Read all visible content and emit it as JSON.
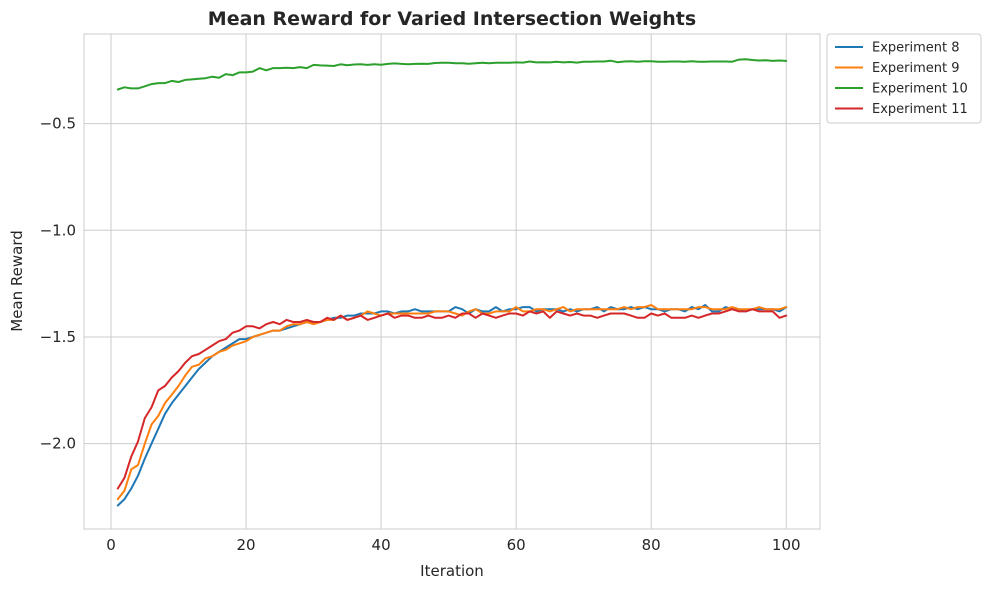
{
  "chart_data": {
    "type": "line",
    "title": "Mean Reward for Varied Intersection Weights",
    "xlabel": "Iteration",
    "ylabel": "Mean Reward",
    "xlim": [
      -4,
      105
    ],
    "ylim": [
      -2.4,
      -0.08
    ],
    "xticks": [
      0,
      20,
      40,
      60,
      80,
      100
    ],
    "yticks": [
      -2.0,
      -1.5,
      -1.0,
      -0.5
    ],
    "xtick_labels": [
      "0",
      "20",
      "40",
      "60",
      "80",
      "100"
    ],
    "ytick_labels": [
      "−2.0",
      "−1.5",
      "−1.0",
      "−0.5"
    ],
    "grid": true,
    "legend_position": "outside-top-right",
    "x": [
      1,
      2,
      3,
      4,
      5,
      6,
      7,
      8,
      9,
      10,
      11,
      12,
      13,
      14,
      15,
      16,
      17,
      18,
      19,
      20,
      21,
      22,
      23,
      24,
      25,
      26,
      27,
      28,
      29,
      30,
      31,
      32,
      33,
      34,
      35,
      36,
      37,
      38,
      39,
      40,
      41,
      42,
      43,
      44,
      45,
      46,
      47,
      48,
      49,
      50,
      51,
      52,
      53,
      54,
      55,
      56,
      57,
      58,
      59,
      60,
      61,
      62,
      63,
      64,
      65,
      66,
      67,
      68,
      69,
      70,
      71,
      72,
      73,
      74,
      75,
      76,
      77,
      78,
      79,
      80,
      81,
      82,
      83,
      84,
      85,
      86,
      87,
      88,
      89,
      90,
      91,
      92,
      93,
      94,
      95,
      96,
      97,
      98,
      99,
      100
    ],
    "series": [
      {
        "name": "Experiment 8",
        "color": "#1f77b4",
        "values": [
          -2.29,
          -2.26,
          -2.21,
          -2.15,
          -2.07,
          -2.0,
          -1.93,
          -1.86,
          -1.81,
          -1.77,
          -1.73,
          -1.69,
          -1.65,
          -1.62,
          -1.59,
          -1.57,
          -1.55,
          -1.53,
          -1.51,
          -1.51,
          -1.5,
          -1.49,
          -1.48,
          -1.47,
          -1.47,
          -1.46,
          -1.45,
          -1.44,
          -1.43,
          -1.43,
          -1.43,
          -1.42,
          -1.41,
          -1.41,
          -1.4,
          -1.4,
          -1.39,
          -1.39,
          -1.39,
          -1.38,
          -1.38,
          -1.39,
          -1.38,
          -1.38,
          -1.37,
          -1.38,
          -1.38,
          -1.38,
          -1.38,
          -1.38,
          -1.36,
          -1.37,
          -1.39,
          -1.37,
          -1.38,
          -1.38,
          -1.36,
          -1.38,
          -1.37,
          -1.37,
          -1.36,
          -1.36,
          -1.38,
          -1.37,
          -1.37,
          -1.37,
          -1.38,
          -1.37,
          -1.38,
          -1.37,
          -1.37,
          -1.36,
          -1.38,
          -1.36,
          -1.37,
          -1.37,
          -1.36,
          -1.37,
          -1.36,
          -1.37,
          -1.37,
          -1.38,
          -1.37,
          -1.37,
          -1.38,
          -1.36,
          -1.37,
          -1.35,
          -1.38,
          -1.38,
          -1.36,
          -1.37,
          -1.37,
          -1.38,
          -1.37,
          -1.37,
          -1.37,
          -1.37,
          -1.38,
          -1.36
        ]
      },
      {
        "name": "Experiment 9",
        "color": "#ff7f0e",
        "values": [
          -2.26,
          -2.22,
          -2.12,
          -2.1,
          -2.0,
          -1.91,
          -1.87,
          -1.81,
          -1.77,
          -1.73,
          -1.68,
          -1.64,
          -1.63,
          -1.6,
          -1.59,
          -1.57,
          -1.56,
          -1.54,
          -1.53,
          -1.52,
          -1.5,
          -1.49,
          -1.48,
          -1.47,
          -1.47,
          -1.45,
          -1.44,
          -1.44,
          -1.43,
          -1.44,
          -1.43,
          -1.42,
          -1.42,
          -1.4,
          -1.42,
          -1.41,
          -1.4,
          -1.38,
          -1.39,
          -1.4,
          -1.39,
          -1.39,
          -1.39,
          -1.39,
          -1.39,
          -1.39,
          -1.39,
          -1.38,
          -1.38,
          -1.38,
          -1.39,
          -1.4,
          -1.38,
          -1.37,
          -1.39,
          -1.39,
          -1.38,
          -1.38,
          -1.38,
          -1.36,
          -1.38,
          -1.38,
          -1.37,
          -1.37,
          -1.38,
          -1.37,
          -1.36,
          -1.38,
          -1.37,
          -1.37,
          -1.37,
          -1.37,
          -1.37,
          -1.37,
          -1.37,
          -1.36,
          -1.37,
          -1.36,
          -1.36,
          -1.35,
          -1.37,
          -1.37,
          -1.37,
          -1.37,
          -1.37,
          -1.37,
          -1.36,
          -1.36,
          -1.37,
          -1.37,
          -1.37,
          -1.36,
          -1.37,
          -1.37,
          -1.37,
          -1.36,
          -1.37,
          -1.37,
          -1.37,
          -1.36
        ]
      },
      {
        "name": "Experiment 10",
        "color": "#2ca02c",
        "values": [
          -0.34,
          -0.33,
          -0.335,
          -0.335,
          -0.325,
          -0.315,
          -0.31,
          -0.31,
          -0.3,
          -0.305,
          -0.295,
          -0.293,
          -0.29,
          -0.287,
          -0.28,
          -0.285,
          -0.268,
          -0.273,
          -0.26,
          -0.26,
          -0.256,
          -0.24,
          -0.25,
          -0.24,
          -0.24,
          -0.238,
          -0.24,
          -0.235,
          -0.24,
          -0.225,
          -0.227,
          -0.228,
          -0.23,
          -0.222,
          -0.226,
          -0.223,
          -0.222,
          -0.225,
          -0.222,
          -0.224,
          -0.22,
          -0.218,
          -0.22,
          -0.222,
          -0.22,
          -0.219,
          -0.22,
          -0.216,
          -0.215,
          -0.215,
          -0.217,
          -0.217,
          -0.219,
          -0.217,
          -0.215,
          -0.217,
          -0.215,
          -0.215,
          -0.215,
          -0.213,
          -0.214,
          -0.209,
          -0.213,
          -0.212,
          -0.213,
          -0.21,
          -0.213,
          -0.211,
          -0.214,
          -0.21,
          -0.21,
          -0.209,
          -0.209,
          -0.205,
          -0.212,
          -0.209,
          -0.208,
          -0.21,
          -0.208,
          -0.208,
          -0.21,
          -0.21,
          -0.209,
          -0.209,
          -0.21,
          -0.208,
          -0.21,
          -0.21,
          -0.209,
          -0.209,
          -0.209,
          -0.21,
          -0.2,
          -0.198,
          -0.202,
          -0.204,
          -0.203,
          -0.206,
          -0.204,
          -0.206
        ]
      },
      {
        "name": "Experiment 11",
        "color": "#d62728",
        "values": [
          -2.21,
          -2.16,
          -2.06,
          -1.99,
          -1.88,
          -1.83,
          -1.75,
          -1.73,
          -1.69,
          -1.66,
          -1.62,
          -1.59,
          -1.58,
          -1.56,
          -1.54,
          -1.52,
          -1.51,
          -1.48,
          -1.47,
          -1.45,
          -1.45,
          -1.46,
          -1.44,
          -1.43,
          -1.44,
          -1.42,
          -1.43,
          -1.43,
          -1.42,
          -1.43,
          -1.43,
          -1.41,
          -1.42,
          -1.4,
          -1.42,
          -1.41,
          -1.4,
          -1.42,
          -1.41,
          -1.4,
          -1.39,
          -1.41,
          -1.4,
          -1.4,
          -1.41,
          -1.41,
          -1.4,
          -1.41,
          -1.41,
          -1.4,
          -1.41,
          -1.39,
          -1.39,
          -1.41,
          -1.39,
          -1.4,
          -1.41,
          -1.4,
          -1.39,
          -1.39,
          -1.4,
          -1.38,
          -1.39,
          -1.38,
          -1.41,
          -1.38,
          -1.39,
          -1.4,
          -1.39,
          -1.4,
          -1.4,
          -1.41,
          -1.4,
          -1.39,
          -1.39,
          -1.39,
          -1.4,
          -1.41,
          -1.41,
          -1.39,
          -1.4,
          -1.39,
          -1.41,
          -1.41,
          -1.41,
          -1.4,
          -1.41,
          -1.4,
          -1.39,
          -1.39,
          -1.38,
          -1.37,
          -1.38,
          -1.38,
          -1.37,
          -1.38,
          -1.38,
          -1.38,
          -1.41,
          -1.4
        ]
      }
    ]
  }
}
